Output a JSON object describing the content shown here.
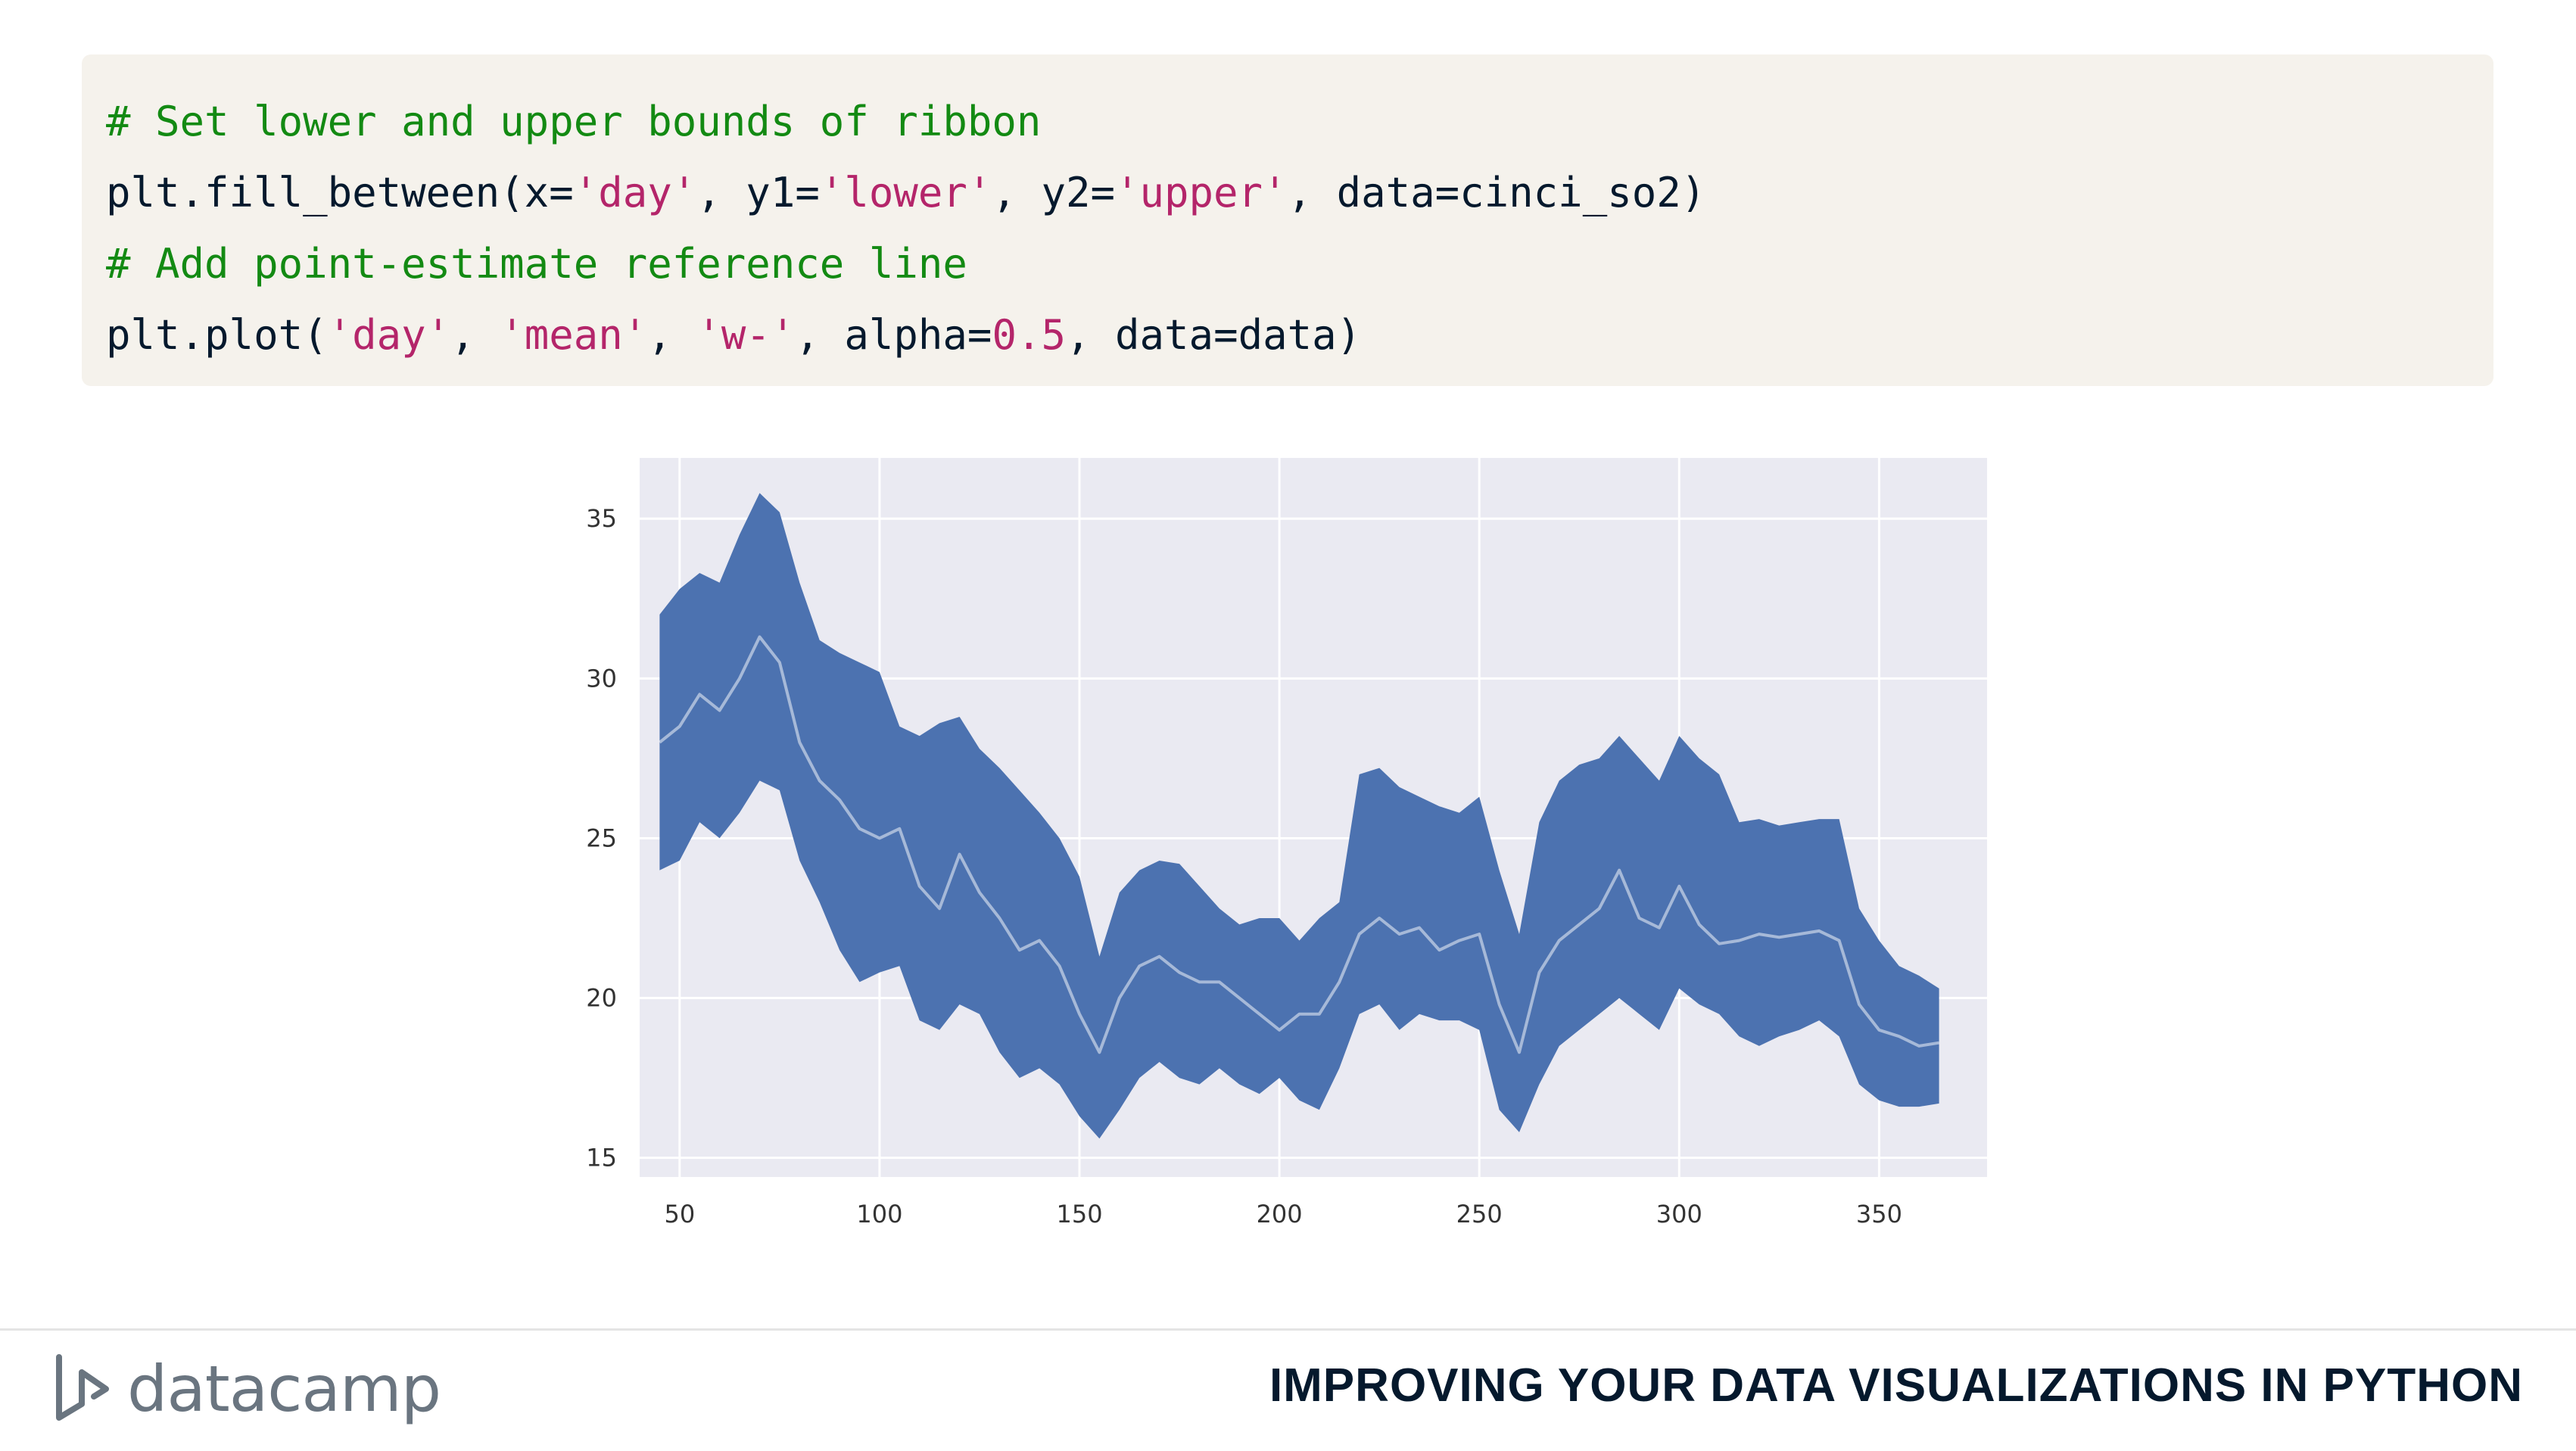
{
  "code": {
    "lines": [
      [
        {
          "t": "# Set lower and upper bounds of ribbon",
          "k": "comment"
        }
      ],
      [
        {
          "t": "plt.fill_between(x=",
          "k": "plain"
        },
        {
          "t": "'day'",
          "k": "string"
        },
        {
          "t": ", y1=",
          "k": "plain"
        },
        {
          "t": "'lower'",
          "k": "string"
        },
        {
          "t": ", y2=",
          "k": "plain"
        },
        {
          "t": "'upper'",
          "k": "string"
        },
        {
          "t": ", data=cinci_so2)",
          "k": "plain"
        }
      ],
      [
        {
          "t": "# Add point-estimate reference line",
          "k": "comment"
        }
      ],
      [
        {
          "t": "plt.plot(",
          "k": "plain"
        },
        {
          "t": "'day'",
          "k": "string"
        },
        {
          "t": ", ",
          "k": "plain"
        },
        {
          "t": "'mean'",
          "k": "string"
        },
        {
          "t": ", ",
          "k": "plain"
        },
        {
          "t": "'w-'",
          "k": "string"
        },
        {
          "t": ", alpha=",
          "k": "plain"
        },
        {
          "t": "0.5",
          "k": "number"
        },
        {
          "t": ", data=data)",
          "k": "plain"
        }
      ]
    ]
  },
  "chart_data": {
    "type": "area",
    "title": "",
    "xlabel": "",
    "ylabel": "",
    "xlim": [
      40,
      377
    ],
    "ylim": [
      14.4,
      36.9
    ],
    "xticks": [
      50,
      100,
      150,
      200,
      250,
      300,
      350
    ],
    "yticks": [
      15,
      20,
      25,
      30,
      35
    ],
    "grid": true,
    "legend": "none",
    "colors": {
      "ribbon": "#4c72b0",
      "mean_line": "#ffffff",
      "background": "#eaeaf2",
      "grid": "#ffffff"
    },
    "mean_line_alpha": 0.5,
    "x": [
      45,
      50,
      55,
      60,
      65,
      70,
      75,
      80,
      85,
      90,
      95,
      100,
      105,
      110,
      115,
      120,
      125,
      130,
      135,
      140,
      145,
      150,
      155,
      160,
      165,
      170,
      175,
      180,
      185,
      190,
      195,
      200,
      205,
      210,
      215,
      220,
      225,
      230,
      235,
      240,
      245,
      250,
      255,
      260,
      265,
      270,
      275,
      280,
      285,
      290,
      295,
      300,
      305,
      310,
      315,
      320,
      325,
      330,
      335,
      340,
      345,
      350,
      355,
      360,
      365
    ],
    "series": [
      {
        "values_upper": [
          32.0,
          32.8,
          33.3,
          33.0,
          34.5,
          35.8,
          35.2,
          33.0,
          31.2,
          30.8,
          30.5,
          30.2,
          28.5,
          28.2,
          28.6,
          28.8,
          27.8,
          27.2,
          26.5,
          25.8,
          25.0,
          23.8,
          21.3,
          23.3,
          24.0,
          24.3,
          24.2,
          23.5,
          22.8,
          22.3,
          22.5,
          22.5,
          21.8,
          22.5,
          23.0,
          27.0,
          27.2,
          26.6,
          26.3,
          26.0,
          25.8,
          26.3,
          24.0,
          22.0,
          25.5,
          26.8,
          27.3,
          27.5,
          28.2,
          27.5,
          26.8,
          28.2,
          27.5,
          27.0,
          25.5,
          25.6,
          25.4,
          25.5,
          25.6,
          25.6,
          22.8,
          21.8,
          21.0,
          20.7,
          20.3
        ],
        "values_mean": [
          28.0,
          28.5,
          29.5,
          29.0,
          30.0,
          31.3,
          30.5,
          28.0,
          26.8,
          26.2,
          25.3,
          25.0,
          25.3,
          23.5,
          22.8,
          24.5,
          23.3,
          22.5,
          21.5,
          21.8,
          21.0,
          19.5,
          18.3,
          20.0,
          21.0,
          21.3,
          20.8,
          20.5,
          20.5,
          20.0,
          19.5,
          19.0,
          19.5,
          19.5,
          20.5,
          22.0,
          22.5,
          22.0,
          22.2,
          21.5,
          21.8,
          22.0,
          19.8,
          18.3,
          20.8,
          21.8,
          22.3,
          22.8,
          24.0,
          22.5,
          22.2,
          23.5,
          22.3,
          21.7,
          21.8,
          22.0,
          21.9,
          22.0,
          22.1,
          21.8,
          19.8,
          19.0,
          18.8,
          18.5,
          18.6
        ],
        "values_lower": [
          24.0,
          24.3,
          25.5,
          25.0,
          25.8,
          26.8,
          26.5,
          24.3,
          23.0,
          21.5,
          20.5,
          20.8,
          21.0,
          19.3,
          19.0,
          19.8,
          19.5,
          18.3,
          17.5,
          17.8,
          17.3,
          16.3,
          15.6,
          16.5,
          17.5,
          18.0,
          17.5,
          17.3,
          17.8,
          17.3,
          17.0,
          17.5,
          16.8,
          16.5,
          17.8,
          19.5,
          19.8,
          19.0,
          19.5,
          19.3,
          19.3,
          19.0,
          16.5,
          15.8,
          17.3,
          18.5,
          19.0,
          19.5,
          20.0,
          19.5,
          19.0,
          20.3,
          19.8,
          19.5,
          18.8,
          18.5,
          18.8,
          19.0,
          19.3,
          18.8,
          17.3,
          16.8,
          16.6,
          16.6,
          16.7
        ]
      }
    ]
  },
  "footer": {
    "logo_text": "datacamp",
    "title": "IMPROVING YOUR DATA VISUALIZATIONS IN PYTHON"
  }
}
